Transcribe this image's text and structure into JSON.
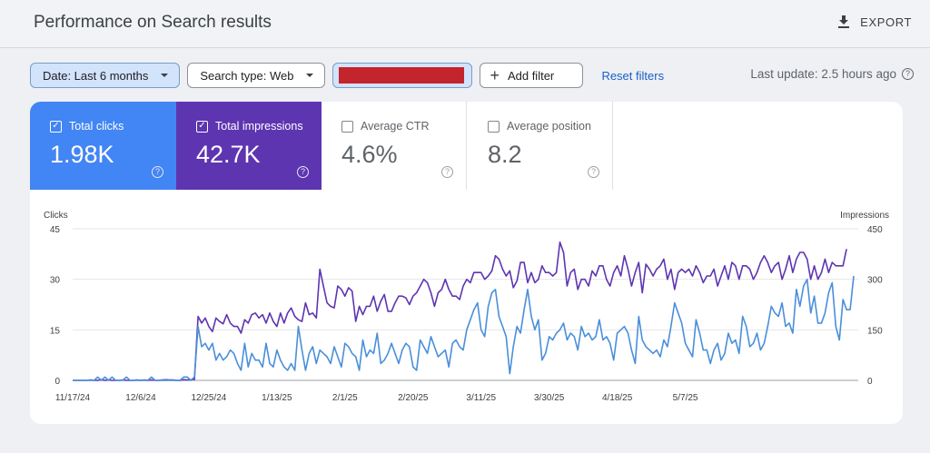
{
  "header": {
    "title": "Performance on Search results",
    "export_label": "EXPORT"
  },
  "filters": {
    "date": "Date: Last 6 months",
    "search_type": "Search type: Web",
    "add_filter": "Add filter",
    "reset": "Reset filters"
  },
  "last_update": "Last update: 2.5 hours ago",
  "metrics": [
    {
      "label": "Total clicks",
      "value": "1.98K",
      "checked": true
    },
    {
      "label": "Total impressions",
      "value": "42.7K",
      "checked": true
    },
    {
      "label": "Average CTR",
      "value": "4.6%",
      "checked": false
    },
    {
      "label": "Average position",
      "value": "8.2",
      "checked": false
    }
  ],
  "colors": {
    "clicks": "#4a8fd9",
    "impressions": "#5e35b1",
    "accent": "#1a5fc4"
  },
  "chart_data": {
    "type": "line",
    "ylabel": "Clicks",
    "ylabel_right": "Impressions",
    "ylim": [
      0,
      45
    ],
    "ylim_right": [
      0,
      450
    ],
    "yticks": [
      0,
      15,
      30,
      45
    ],
    "yticks_right": [
      0,
      150,
      300,
      450
    ],
    "xtick_labels": [
      "11/17/24",
      "12/6/24",
      "12/25/24",
      "1/13/25",
      "2/1/25",
      "2/20/25",
      "3/11/25",
      "3/30/25",
      "4/18/25",
      "5/7/25"
    ],
    "x_start": "11/17/24",
    "grid": true,
    "series": [
      {
        "name": "Clicks",
        "axis": "left",
        "values": [
          0,
          0,
          0,
          0,
          0,
          0,
          0,
          1,
          0,
          1,
          0,
          1,
          0,
          0,
          0,
          1,
          0,
          0,
          0,
          0,
          0,
          0,
          1,
          0,
          0,
          0,
          0,
          0,
          0,
          0,
          0,
          1,
          1,
          0,
          1,
          16,
          10,
          11,
          9,
          11,
          6,
          8,
          6,
          7,
          9,
          8,
          5,
          3,
          11,
          4,
          8,
          6,
          6,
          4,
          11,
          5,
          4,
          9,
          6,
          4,
          3,
          5,
          3,
          16,
          9,
          3,
          8,
          10,
          5,
          9,
          8,
          7,
          5,
          10,
          7,
          4,
          11,
          10,
          8,
          7,
          3,
          12,
          7,
          9,
          8,
          14,
          5,
          6,
          8,
          11,
          8,
          5,
          9,
          11,
          10,
          4,
          3,
          12,
          10,
          8,
          13,
          10,
          7,
          8,
          9,
          4,
          11,
          12,
          10,
          9,
          15,
          18,
          21,
          23,
          15,
          13,
          22,
          26,
          27,
          19,
          16,
          13,
          2,
          10,
          16,
          14,
          21,
          27,
          19,
          15,
          18,
          6,
          8,
          13,
          12,
          14,
          15,
          17,
          12,
          14,
          13,
          9,
          16,
          13,
          14,
          12,
          13,
          18,
          12,
          13,
          11,
          6,
          14,
          15,
          16,
          14,
          9,
          5,
          19,
          12,
          10,
          9,
          8,
          9,
          7,
          12,
          10,
          16,
          23,
          20,
          17,
          11,
          9,
          7,
          18,
          14,
          9,
          9,
          5,
          9,
          11,
          6,
          8,
          14,
          11,
          12,
          8,
          19,
          16,
          10,
          11,
          14,
          9,
          11,
          16,
          22,
          20,
          19,
          23,
          16,
          17,
          14,
          27,
          22,
          28,
          30,
          20,
          25,
          17,
          17,
          20,
          26,
          29,
          16,
          12,
          24,
          21,
          21,
          31
        ]
      },
      {
        "name": "Impressions",
        "axis": "right",
        "values": [
          0,
          0,
          0,
          0,
          0,
          1,
          0,
          0,
          2,
          0,
          1,
          0,
          0,
          0,
          1,
          0,
          0,
          0,
          1,
          0,
          1,
          0,
          1,
          0,
          0,
          1,
          2,
          1,
          1,
          0,
          0,
          2,
          1,
          2,
          3,
          190,
          170,
          185,
          160,
          145,
          185,
          175,
          168,
          195,
          170,
          160,
          160,
          140,
          180,
          170,
          195,
          200,
          185,
          195,
          170,
          200,
          175,
          160,
          200,
          170,
          200,
          215,
          190,
          180,
          175,
          230,
          195,
          200,
          185,
          330,
          280,
          230,
          220,
          215,
          280,
          270,
          250,
          275,
          265,
          175,
          220,
          195,
          220,
          220,
          250,
          205,
          235,
          255,
          205,
          205,
          230,
          250,
          250,
          245,
          225,
          250,
          260,
          280,
          300,
          290,
          260,
          220,
          260,
          270,
          300,
          270,
          250,
          250,
          240,
          280,
          300,
          290,
          320,
          320,
          320,
          300,
          310,
          325,
          370,
          360,
          330,
          310,
          325,
          275,
          295,
          350,
          350,
          290,
          320,
          290,
          300,
          340,
          320,
          320,
          310,
          320,
          410,
          380,
          280,
          320,
          330,
          270,
          300,
          300,
          280,
          325,
          310,
          340,
          340,
          300,
          280,
          320,
          340,
          310,
          370,
          330,
          280,
          320,
          350,
          260,
          345,
          330,
          310,
          330,
          340,
          360,
          300,
          330,
          270,
          320,
          330,
          320,
          330,
          310,
          340,
          320,
          290,
          310,
          310,
          330,
          280,
          310,
          340,
          300,
          350,
          340,
          300,
          340,
          340,
          330,
          300,
          320,
          350,
          370,
          350,
          320,
          340,
          350,
          300,
          330,
          370,
          320,
          360,
          380,
          380,
          360,
          300,
          340,
          300,
          320,
          360,
          320,
          350,
          340,
          340,
          340,
          390
        ]
      }
    ]
  }
}
